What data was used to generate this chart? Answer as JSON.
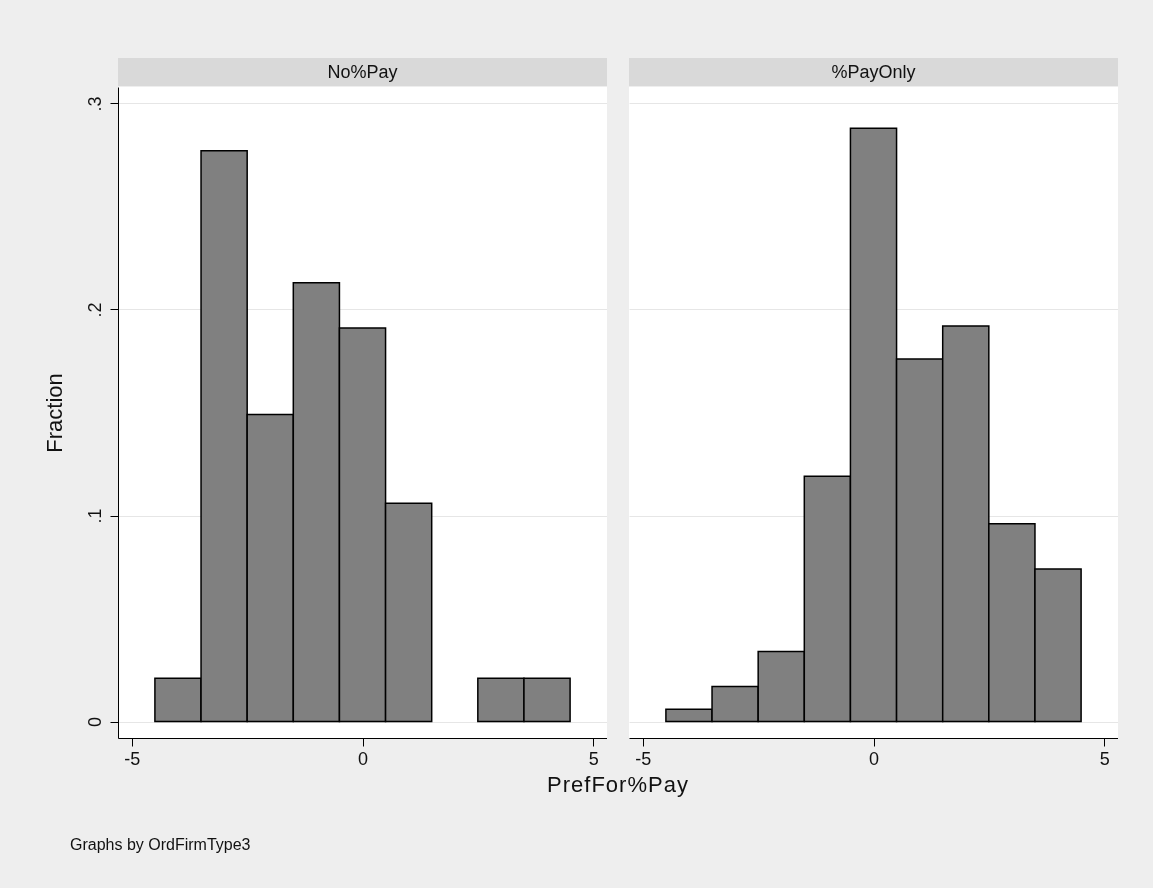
{
  "chart_data": [
    {
      "type": "histogram",
      "title": "No%Pay",
      "xlabel": "PrefFor%Pay",
      "ylabel": "Fraction",
      "annotations": [
        "Graphs by OrdFirmType3"
      ],
      "color": "#808080",
      "bins": [
        -4.5,
        -3.5,
        -2.5,
        -1.5,
        -0.5,
        0.5,
        1.5,
        2.5,
        3.5,
        4.5
      ],
      "values": [
        0.021,
        0.277,
        0.149,
        0.213,
        0.191,
        0.106,
        0,
        0.021,
        0.021
      ],
      "xlim": [
        -5.3,
        5.3
      ],
      "xticks": [
        -5,
        0,
        5
      ],
      "ylim": [
        -0.008,
        0.308
      ],
      "yticks": [
        0,
        {
          "value": 0.1,
          "label": ".1"
        },
        {
          "value": 0.2,
          "label": ".2"
        },
        {
          "value": 0.3,
          "label": ".3"
        }
      ],
      "grid": "y"
    },
    {
      "type": "histogram",
      "title": "%PayOnly",
      "color": "#808080",
      "bins": [
        -4.5,
        -3.5,
        -2.5,
        -1.5,
        -0.5,
        0.5,
        1.5,
        2.5,
        3.5,
        4.5
      ],
      "values": [
        0.006,
        0.017,
        0.034,
        0.119,
        0.288,
        0.176,
        0.192,
        0.096,
        0.074
      ],
      "xlim": [
        -5.3,
        5.3
      ],
      "xticks": [
        -5,
        0,
        5
      ],
      "ylim": [
        -0.008,
        0.308
      ],
      "yticks": [
        0,
        0.1,
        0.2,
        0.3
      ],
      "grid": "y",
      "tick_labels": "x"
    }
  ]
}
